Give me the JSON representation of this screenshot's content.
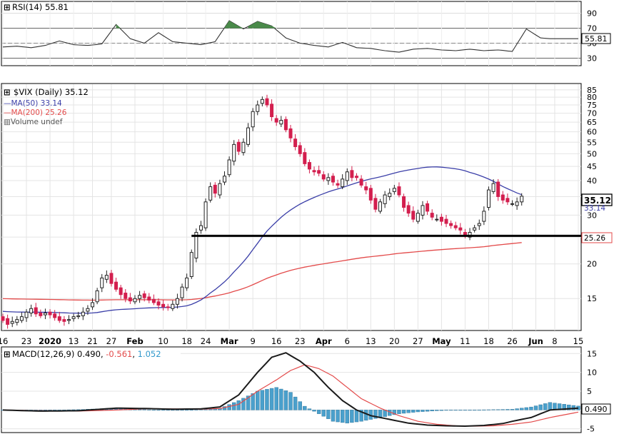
{
  "chart_data": [
    {
      "type": "line",
      "panel": "rsi",
      "title": "RSI(14) 55.81",
      "ylim": [
        20,
        100
      ],
      "yticks": [
        90,
        70,
        50,
        30
      ],
      "overbought": 70,
      "oversold": 30,
      "last_value_label": "55.81",
      "series": [
        {
          "name": "RSI(14)",
          "x_index": [
            0,
            3,
            6,
            9,
            12,
            15,
            18,
            21,
            24,
            27,
            30,
            33,
            36,
            39,
            42,
            45,
            48,
            51,
            54,
            57,
            60,
            63,
            66,
            69,
            72,
            75,
            78,
            81,
            84,
            87,
            90,
            93,
            96,
            99,
            102,
            105,
            108,
            111,
            114,
            116
          ],
          "values": [
            45,
            46,
            44,
            47,
            53,
            48,
            47,
            49,
            75,
            56,
            50,
            64,
            52,
            50,
            48,
            52,
            80,
            69,
            79,
            73,
            57,
            50,
            47,
            45,
            51,
            44,
            43,
            40,
            38,
            42,
            43,
            41,
            40,
            42,
            40,
            41,
            39,
            69,
            57,
            56
          ]
        }
      ]
    },
    {
      "type": "candlestick",
      "panel": "price",
      "title": "$VIX (Daily) 35.12",
      "scale": "log",
      "ylim": [
        11.5,
        87
      ],
      "yticks": [
        85,
        80,
        75,
        70,
        65,
        60,
        55,
        50,
        45,
        40,
        35,
        30,
        25,
        20,
        15
      ],
      "last_price_label": "35.12",
      "support_line_value": 25.26,
      "x_tick_labels": [
        "16",
        "23",
        "2020",
        "13",
        "21",
        "27",
        "Feb",
        "10",
        "18",
        "24",
        "Mar",
        "9",
        "16",
        "23",
        "Apr",
        "6",
        "13",
        "20",
        "27",
        "May",
        "11",
        "18",
        "26",
        "Jun",
        "8",
        "15"
      ],
      "x_tick_index": [
        0,
        5,
        10,
        15,
        19,
        23,
        28,
        34,
        39,
        43,
        48,
        53,
        58,
        63,
        68,
        73,
        78,
        83,
        88,
        93,
        98,
        103,
        108,
        113,
        117,
        122
      ],
      "legend": [
        {
          "label": "MA(50) 33.14",
          "color": "#3b3fa8"
        },
        {
          "label": "MA(200) 25.26",
          "color": "#e34a4a"
        },
        {
          "label": "Volume undef",
          "color": "#888888"
        }
      ],
      "ma_labels": [
        {
          "value": 33.14,
          "text": "33.14",
          "color": "#3b3fa8"
        },
        {
          "value": 25.26,
          "text": "25.26",
          "color": "#e34a4a"
        }
      ],
      "closes": [
        12.5,
        12.1,
        12.4,
        12.6,
        12.9,
        13.4,
        13.8,
        13.2,
        13.0,
        13.3,
        13.1,
        12.8,
        12.5,
        12.4,
        12.6,
        12.9,
        13.0,
        13.4,
        13.8,
        14.5,
        16.0,
        17.8,
        18.2,
        17.0,
        16.2,
        15.5,
        15.0,
        14.7,
        15.0,
        15.4,
        15.1,
        14.8,
        14.5,
        14.2,
        14.0,
        13.9,
        14.3,
        15.0,
        16.5,
        17.8,
        22.0,
        26.0,
        27.5,
        33.5,
        38.0,
        36.0,
        39.0,
        41.5,
        47.5,
        54.0,
        51.0,
        55.0,
        62.0,
        71.0,
        75.0,
        78.5,
        75.0,
        68.0,
        65.0,
        66.0,
        61.0,
        57.0,
        53.0,
        50.0,
        46.0,
        44.0,
        43.0,
        42.5,
        40.5,
        41.0,
        39.5,
        38.5,
        40.5,
        43.0,
        41.0,
        41.0,
        38.5,
        37.0,
        34.0,
        31.5,
        33.5,
        35.5,
        36.0,
        37.5,
        35.5,
        32.0,
        30.5,
        29.0,
        30.5,
        32.5,
        31.0,
        29.5,
        29.0,
        28.5,
        28.0,
        27.5,
        27.0,
        26.5,
        25.5,
        26.0,
        27.0,
        28.0,
        31.0,
        37.0,
        39.0,
        35.0,
        34.0,
        33.5,
        33.0,
        33.5,
        35.12
      ],
      "opens": [
        12.9,
        12.7,
        12.2,
        12.3,
        12.5,
        12.8,
        13.3,
        13.9,
        13.3,
        13.1,
        13.4,
        13.2,
        12.9,
        12.6,
        12.5,
        12.7,
        12.9,
        13.0,
        13.5,
        14.0,
        14.6,
        16.4,
        17.6,
        18.5,
        17.2,
        16.4,
        15.7,
        15.1,
        14.6,
        15.0,
        15.6,
        15.2,
        14.9,
        14.6,
        14.3,
        14.0,
        13.8,
        14.3,
        15.1,
        16.4,
        18.0,
        21.0,
        26.5,
        27.0,
        34.0,
        38.5,
        35.5,
        39.5,
        42.0,
        47.0,
        55.0,
        50.5,
        54.0,
        62.5,
        71.0,
        76.0,
        79.0,
        75.5,
        67.0,
        64.0,
        66.5,
        61.5,
        56.5,
        53.5,
        50.5,
        46.5,
        43.5,
        43.5,
        42.0,
        40.0,
        41.5,
        39.0,
        38.0,
        40.0,
        43.5,
        41.5,
        40.5,
        38.0,
        37.5,
        34.5,
        31.0,
        33.0,
        35.0,
        36.5,
        38.0,
        35.0,
        32.5,
        31.0,
        28.5,
        30.0,
        33.0,
        30.5,
        29.0,
        29.5,
        29.0,
        28.0,
        27.5,
        27.0,
        26.0,
        25.0,
        26.5,
        27.5,
        28.5,
        32.0,
        36.5,
        39.5,
        35.5,
        34.5,
        33.0,
        32.5,
        33.5
      ]
    },
    {
      "type": "line",
      "panel": "macd",
      "title": "MACD(12,26,9) 0.490, -0.561, 1.052",
      "legend_values": [
        "0.490",
        "-0.561",
        "1.052"
      ],
      "ylim": [
        -6,
        16
      ],
      "yticks": [
        15,
        10,
        5,
        0,
        -5
      ],
      "last_value_label": "0.490",
      "series": [
        {
          "name": "MACD(12,26,9)",
          "color": "#1a1a1a",
          "x_index": [
            0,
            8,
            16,
            24,
            30,
            36,
            42,
            46,
            50,
            54,
            57,
            60,
            63,
            66,
            69,
            72,
            75,
            78,
            82,
            86,
            90,
            94,
            98,
            102,
            106,
            108,
            112,
            116,
            122
          ],
          "values": [
            0,
            -0.3,
            -0.2,
            0.5,
            0.4,
            0.2,
            0.3,
            0.8,
            4,
            10,
            14,
            15.2,
            13,
            10,
            6,
            2.5,
            0,
            -1.5,
            -2.5,
            -3.5,
            -4,
            -4.2,
            -4.3,
            -4.1,
            -3.6,
            -3,
            -2,
            0,
            0.49
          ]
        },
        {
          "name": "Signal",
          "color": "#e34a4a",
          "x_index": [
            0,
            8,
            16,
            24,
            30,
            36,
            42,
            46,
            50,
            54,
            58,
            61,
            64,
            67,
            70,
            73,
            76,
            80,
            84,
            88,
            92,
            96,
            100,
            104,
            108,
            112,
            116,
            122
          ],
          "values": [
            0,
            -0.2,
            -0.3,
            0,
            0.3,
            0.3,
            0.2,
            0.4,
            1.5,
            5,
            8,
            10.5,
            12,
            11,
            9,
            6,
            3,
            0.5,
            -1.5,
            -3,
            -3.8,
            -4.2,
            -4.3,
            -4.2,
            -3.8,
            -3.2,
            -2,
            -0.561
          ]
        },
        {
          "name": "Histogram",
          "color": "#4aa0cc",
          "x_index": [
            0,
            8,
            16,
            24,
            30,
            36,
            42,
            46,
            50,
            54,
            58,
            61,
            64,
            67,
            70,
            73,
            76,
            80,
            84,
            88,
            92,
            96,
            100,
            104,
            108,
            112,
            116,
            122
          ],
          "values": [
            0,
            -0.1,
            0.1,
            0.5,
            0.1,
            -0.1,
            0.1,
            0.4,
            2.5,
            5,
            6,
            4.7,
            1,
            -1,
            -3,
            -3.5,
            -3,
            -2,
            -1,
            -0.5,
            -0.2,
            0,
            0,
            0.1,
            0.2,
            0.8,
            2,
            1.05
          ]
        }
      ]
    }
  ]
}
